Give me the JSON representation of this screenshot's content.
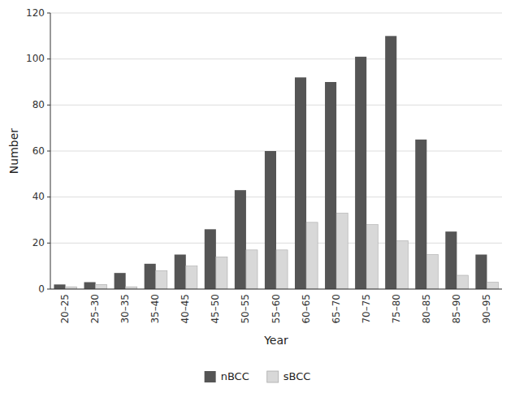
{
  "chart_data": {
    "type": "bar",
    "categories": [
      "20–25",
      "25–30",
      "30–35",
      "35–40",
      "40–45",
      "45–50",
      "50–55",
      "55–60",
      "60–65",
      "65–70",
      "70–75",
      "75–80",
      "80–85",
      "85–90",
      "90–95"
    ],
    "series": [
      {
        "name": "nBCC",
        "color": "#555555",
        "values": [
          2,
          3,
          7,
          11,
          15,
          26,
          43,
          60,
          92,
          90,
          101,
          110,
          65,
          25,
          15
        ]
      },
      {
        "name": "sBCC",
        "color": "#d8d8d8",
        "values": [
          1,
          2,
          1,
          8,
          10,
          14,
          17,
          17,
          29,
          33,
          28,
          21,
          15,
          6,
          3
        ]
      }
    ],
    "xlabel": "Year",
    "ylabel": "Number",
    "ylim": [
      0,
      120
    ],
    "yticks": [
      0,
      20,
      40,
      60,
      80,
      100,
      120
    ],
    "grid": true,
    "legend": "bottom"
  }
}
